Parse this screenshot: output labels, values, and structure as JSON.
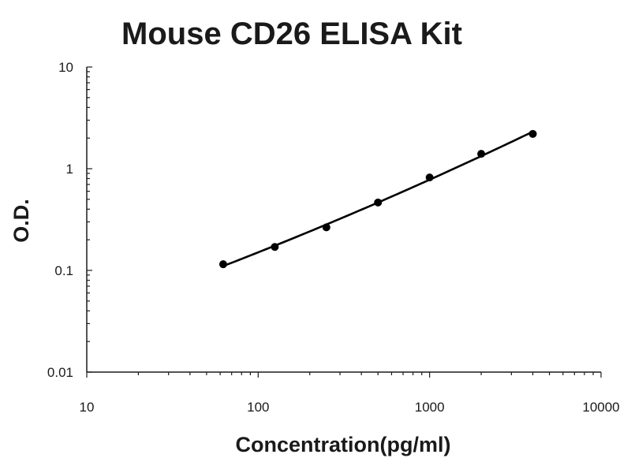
{
  "chart_data": {
    "type": "scatter",
    "title": "Mouse CD26 ELISA Kit",
    "xlabel": "Concentration(pg/ml)",
    "ylabel": "O.D.",
    "x_scale": "log",
    "y_scale": "log",
    "xlim": [
      10,
      10000
    ],
    "ylim": [
      0.01,
      10
    ],
    "x_ticks": [
      {
        "value": 10,
        "label": "10"
      },
      {
        "value": 100,
        "label": "100"
      },
      {
        "value": 1000,
        "label": "1000"
      },
      {
        "value": 10000,
        "label": "10000"
      }
    ],
    "y_ticks": [
      {
        "value": 0.01,
        "label": "0.01"
      },
      {
        "value": 0.1,
        "label": "0.1"
      },
      {
        "value": 1,
        "label": "1"
      },
      {
        "value": 10,
        "label": "10"
      }
    ],
    "grid": false,
    "fit_line": true,
    "points": [
      {
        "x": 62.5,
        "y": 0.115
      },
      {
        "x": 125,
        "y": 0.17
      },
      {
        "x": 250,
        "y": 0.265
      },
      {
        "x": 500,
        "y": 0.465
      },
      {
        "x": 1000,
        "y": 0.82
      },
      {
        "x": 2000,
        "y": 1.4
      },
      {
        "x": 4000,
        "y": 2.2
      }
    ],
    "colors": {
      "line": "#000000",
      "marker": "#000000",
      "axis": "#1a1a1a"
    }
  }
}
